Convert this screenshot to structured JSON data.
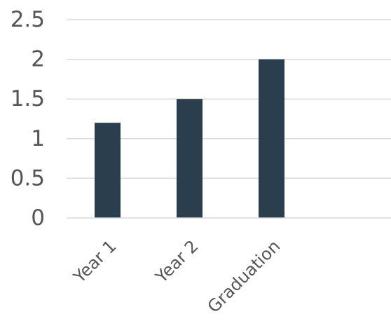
{
  "chart_data": {
    "type": "bar",
    "categories": [
      "Year 1",
      "Year 2",
      "Graduation"
    ],
    "values": [
      1.2,
      1.5,
      2.0
    ],
    "title": "",
    "xlabel": "",
    "ylabel": "",
    "ylim": [
      0,
      2.5
    ],
    "yticks": [
      "0",
      "0.5",
      "1",
      "1.5",
      "2",
      "2.5"
    ],
    "grid": true,
    "legend": "none",
    "bar_color": "#2b3e4d"
  }
}
